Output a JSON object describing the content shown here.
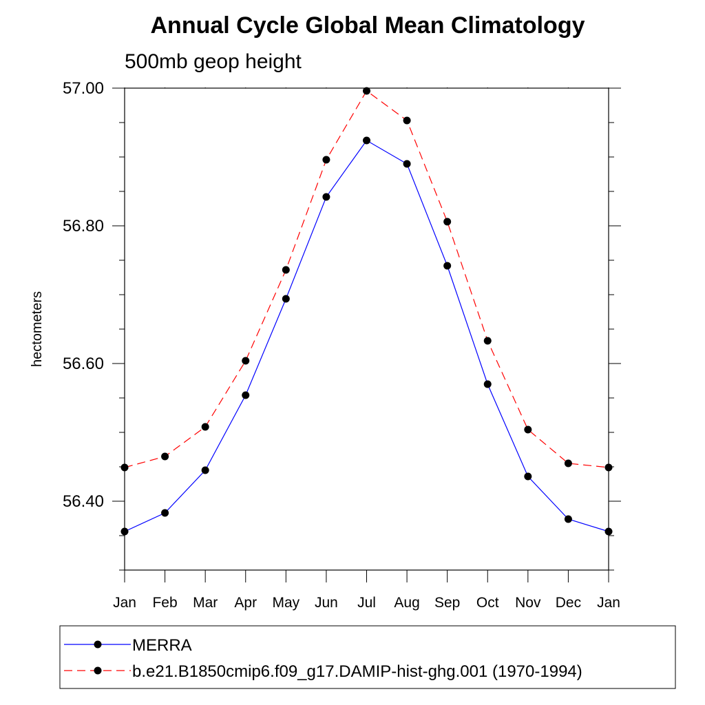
{
  "chart_data": {
    "type": "line",
    "title": "Annual Cycle Global Mean Climatology",
    "subtitle": "500mb geop height",
    "ylabel": "hectometers",
    "xlabel": "",
    "categories": [
      "Jan",
      "Feb",
      "Mar",
      "Apr",
      "May",
      "Jun",
      "Jul",
      "Aug",
      "Sep",
      "Oct",
      "Nov",
      "Dec",
      "Jan"
    ],
    "ylim": [
      56.3,
      57.0
    ],
    "yticks": [
      56.4,
      56.6,
      56.8,
      57.0
    ],
    "ytick_labels": [
      "56.40",
      "56.60",
      "56.80",
      "57.00"
    ],
    "series": [
      {
        "name": "MERRA",
        "color": "#0000ff",
        "line_style": "solid",
        "marker": "filled-circle",
        "values": [
          56.356,
          56.383,
          56.445,
          56.554,
          56.694,
          56.842,
          56.924,
          56.89,
          56.742,
          56.57,
          56.436,
          56.374,
          56.356
        ]
      },
      {
        "name": "b.e21.B1850cmip6.f09_g17.DAMIP-hist-ghg.001 (1970-1994)",
        "color": "#ff0000",
        "line_style": "dashed",
        "marker": "filled-circle",
        "values": [
          56.449,
          56.465,
          56.508,
          56.604,
          56.736,
          56.896,
          56.996,
          56.953,
          56.806,
          56.633,
          56.504,
          56.455,
          56.449
        ]
      }
    ],
    "grid": false,
    "legend_position": "bottom"
  }
}
